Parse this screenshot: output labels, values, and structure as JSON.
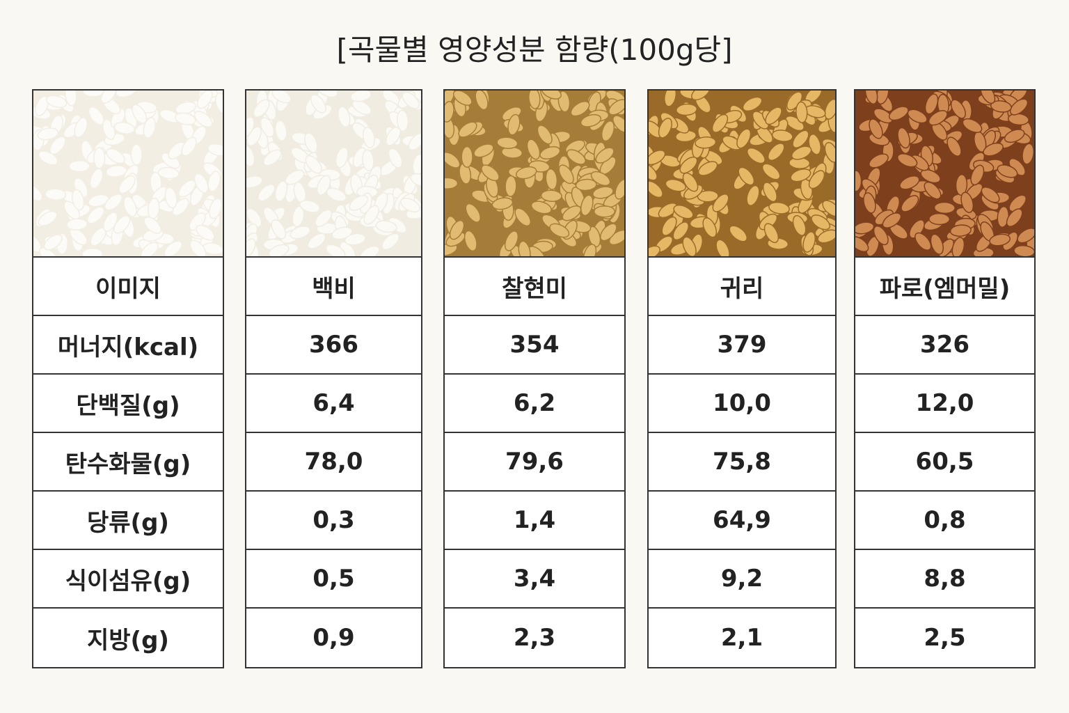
{
  "title": "[곡물별 영양성분 함량(100g당]",
  "table": {
    "header": [
      "이미지",
      "백비",
      "찰현미",
      "귀리",
      "파로(엠머밀)"
    ],
    "rows": [
      [
        "머너지(kcal)",
        "366",
        "354",
        "379",
        "326"
      ],
      [
        "단백질(g)",
        "6,4",
        "6,2",
        "10,0",
        "12,0"
      ],
      [
        "탄수화물(g)",
        "78,0",
        "79,6",
        "75,8",
        "60,5"
      ],
      [
        "당류(g)",
        "0,3",
        "1,4",
        "64,9",
        "0,8"
      ],
      [
        "식이섬유(g)",
        "0,5",
        "3,4",
        "9,2",
        "8,8"
      ],
      [
        "지방(g)",
        "0,9",
        "2,3",
        "2,1",
        "2,5"
      ]
    ]
  }
}
